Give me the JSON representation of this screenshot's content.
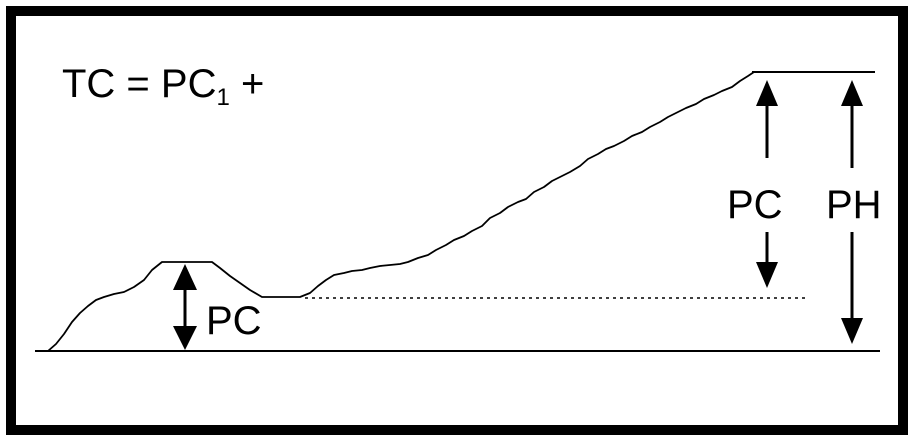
{
  "formula": {
    "lhs": "TC = PC",
    "subscript": "1",
    "rhs": " +"
  },
  "labels": {
    "pc_small": "PC",
    "pc_large": "PC",
    "ph": "PH"
  },
  "colors": {
    "stroke": "#000000",
    "background": "#ffffff"
  }
}
